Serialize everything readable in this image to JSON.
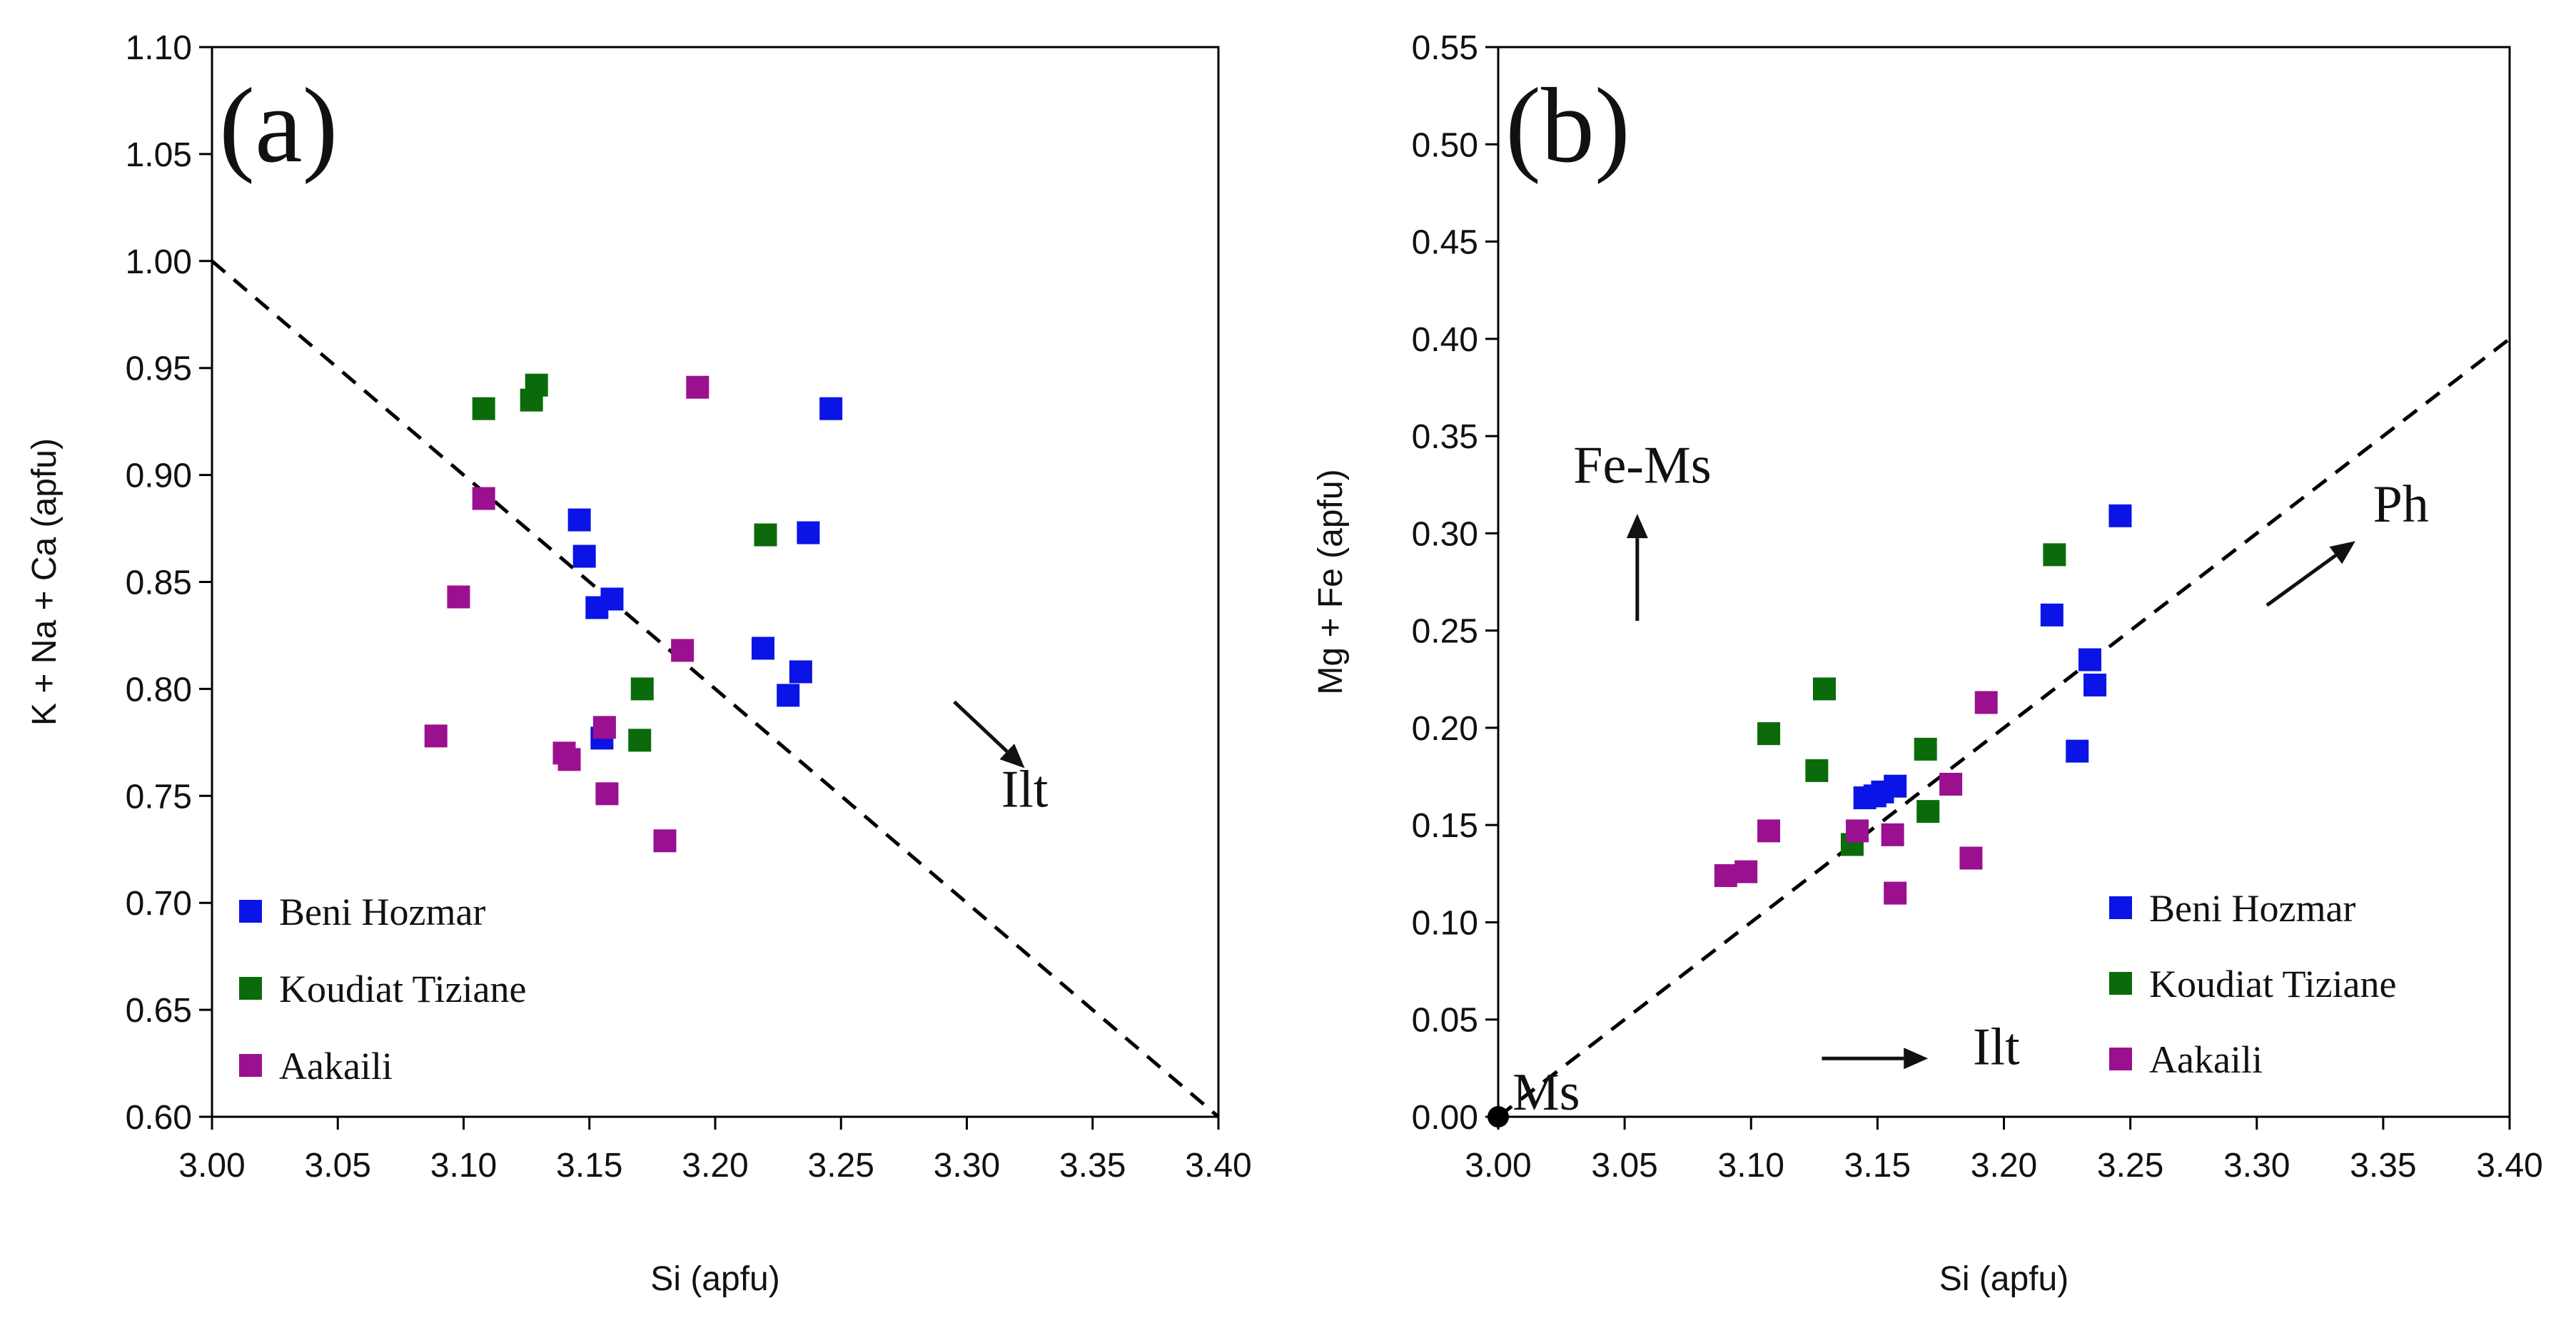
{
  "chart_data": [
    {
      "type": "scatter",
      "panel_label": "(a)",
      "xlabel": "Si (apfu)",
      "ylabel": "K + Na + Ca (apfu)",
      "xlim": [
        3.0,
        3.4
      ],
      "ylim": [
        0.6,
        1.1
      ],
      "x_ticks": [
        "3.00",
        "3.05",
        "3.10",
        "3.15",
        "3.20",
        "3.25",
        "3.30",
        "3.35",
        "3.40"
      ],
      "y_ticks": [
        "0.60",
        "0.65",
        "0.70",
        "0.75",
        "0.80",
        "0.85",
        "0.90",
        "0.95",
        "1.00",
        "1.05",
        "1.10"
      ],
      "reference_line": {
        "from": [
          3.0,
          1.0
        ],
        "to": [
          3.4,
          0.6
        ],
        "style": "dashed"
      },
      "arrows": [
        {
          "from": [
            3.295,
            0.794
          ],
          "to": [
            3.323,
            0.763
          ],
          "label": "Ilt",
          "label_at": [
            3.323,
            0.745
          ]
        }
      ],
      "legend_position": "bottom-left",
      "series": [
        {
          "name": "Beni Hozmar",
          "color": "#0a14e6",
          "points": [
            [
              3.146,
              0.879
            ],
            [
              3.148,
              0.862
            ],
            [
              3.153,
              0.838
            ],
            [
              3.159,
              0.842
            ],
            [
              3.155,
              0.777
            ],
            [
              3.219,
              0.819
            ],
            [
              3.229,
              0.797
            ],
            [
              3.234,
              0.808
            ],
            [
              3.237,
              0.873
            ],
            [
              3.246,
              0.931
            ]
          ]
        },
        {
          "name": "Koudiat Tiziane",
          "color": "#0b6b0b",
          "points": [
            [
              3.108,
              0.931
            ],
            [
              3.127,
              0.935
            ],
            [
              3.129,
              0.942
            ],
            [
              3.17,
              0.776
            ],
            [
              3.171,
              0.8
            ],
            [
              3.22,
              0.872
            ]
          ]
        },
        {
          "name": "Aakaili",
          "color": "#9b108f",
          "points": [
            [
              3.089,
              0.778
            ],
            [
              3.098,
              0.843
            ],
            [
              3.108,
              0.889
            ],
            [
              3.14,
              0.77
            ],
            [
              3.142,
              0.767
            ],
            [
              3.156,
              0.782
            ],
            [
              3.157,
              0.751
            ],
            [
              3.18,
              0.729
            ],
            [
              3.187,
              0.818
            ],
            [
              3.193,
              0.941
            ]
          ]
        }
      ]
    },
    {
      "type": "scatter",
      "panel_label": "(b)",
      "xlabel": "Si (apfu)",
      "ylabel": "Mg + Fe (apfu)",
      "xlim": [
        3.0,
        3.4
      ],
      "ylim": [
        0.0,
        0.55
      ],
      "x_ticks": [
        "3.00",
        "3.05",
        "3.10",
        "3.15",
        "3.20",
        "3.25",
        "3.30",
        "3.35",
        "3.40"
      ],
      "y_ticks": [
        "0.00",
        "0.05",
        "0.10",
        "0.15",
        "0.20",
        "0.25",
        "0.30",
        "0.35",
        "0.40",
        "0.45",
        "0.50",
        "0.55"
      ],
      "reference_line": {
        "from": [
          3.0,
          0.0
        ],
        "to": [
          3.4,
          0.4
        ],
        "style": "dashed"
      },
      "origin_label": "Ms",
      "arrows": [
        {
          "from": [
            3.055,
            0.255
          ],
          "to": [
            3.055,
            0.31
          ],
          "label": "Fe-Ms",
          "label_at": [
            3.057,
            0.326
          ]
        },
        {
          "from": [
            3.128,
            0.03
          ],
          "to": [
            3.17,
            0.03
          ],
          "label": "Ilt",
          "label_at": [
            3.197,
            0.027
          ]
        },
        {
          "from": [
            3.304,
            0.263
          ],
          "to": [
            3.339,
            0.296
          ],
          "label": "Ph",
          "label_at": [
            3.357,
            0.306
          ]
        }
      ],
      "legend_position": "bottom-right",
      "series": [
        {
          "name": "Beni Hozmar",
          "color": "#0a14e6",
          "points": [
            [
              3.145,
              0.164
            ],
            [
              3.149,
              0.165
            ],
            [
              3.152,
              0.167
            ],
            [
              3.157,
              0.17
            ],
            [
              3.219,
              0.258
            ],
            [
              3.229,
              0.188
            ],
            [
              3.234,
              0.235
            ],
            [
              3.236,
              0.222
            ],
            [
              3.246,
              0.309
            ]
          ]
        },
        {
          "name": "Koudiat Tiziane",
          "color": "#0b6b0b",
          "points": [
            [
              3.107,
              0.197
            ],
            [
              3.126,
              0.178
            ],
            [
              3.129,
              0.22
            ],
            [
              3.14,
              0.14
            ],
            [
              3.169,
              0.189
            ],
            [
              3.17,
              0.157
            ],
            [
              3.22,
              0.289
            ]
          ]
        },
        {
          "name": "Aakaili",
          "color": "#9b108f",
          "points": [
            [
              3.09,
              0.124
            ],
            [
              3.098,
              0.126
            ],
            [
              3.107,
              0.147
            ],
            [
              3.142,
              0.147
            ],
            [
              3.156,
              0.145
            ],
            [
              3.157,
              0.115
            ],
            [
              3.179,
              0.171
            ],
            [
              3.187,
              0.133
            ],
            [
              3.193,
              0.213
            ]
          ]
        }
      ]
    }
  ]
}
